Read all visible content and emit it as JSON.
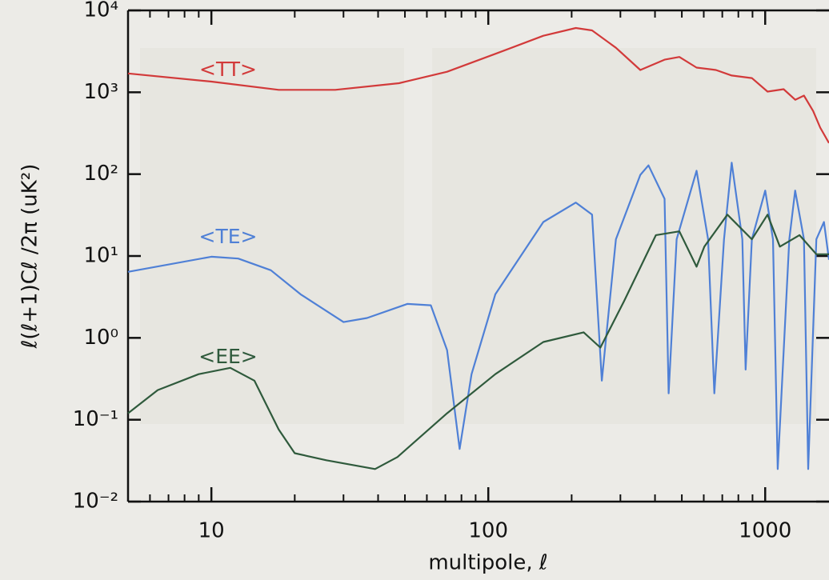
{
  "chart_data": {
    "type": "line",
    "x_label": "multipole, ℓ",
    "y_label": "ℓ(ℓ+1)Cℓ /2π  (uK²)",
    "xscale": "log",
    "yscale": "log",
    "xlim": [
      5,
      1700
    ],
    "ylim": [
      0.01,
      10000
    ],
    "xticks": [
      10,
      100,
      1000
    ],
    "x_minor_ticks": [
      6,
      7,
      8,
      9,
      20,
      30,
      40,
      50,
      60,
      70,
      80,
      90,
      200,
      300,
      400,
      500,
      600,
      700,
      800,
      900
    ],
    "yticks": [
      {
        "value": 0.01,
        "label": "10⁻²"
      },
      {
        "value": 0.1,
        "label": "10⁻¹"
      },
      {
        "value": 1,
        "label": "10⁰"
      },
      {
        "value": 10,
        "label": "10¹"
      },
      {
        "value": 100,
        "label": "10²"
      },
      {
        "value": 1000,
        "label": "10³"
      },
      {
        "value": 10000,
        "label": "10⁴"
      }
    ],
    "series": [
      {
        "name": "<TT>",
        "color": "#d23a3a",
        "x": [
          5,
          10,
          17.5,
          28,
          47.6,
          71,
          106,
          158,
          207,
          237,
          289,
          354,
          433,
          490,
          565,
          664,
          757,
          895,
          1020,
          1166,
          1284,
          1380,
          1490,
          1580,
          1700
        ],
        "values": [
          1700,
          1350,
          1070,
          1070,
          1290,
          1780,
          2950,
          4900,
          6100,
          5700,
          3500,
          1870,
          2500,
          2700,
          2000,
          1870,
          1600,
          1490,
          1020,
          1090,
          810,
          910,
          590,
          370,
          240
        ]
      },
      {
        "name": "<TE>",
        "color": "#4f80d6",
        "x": [
          5,
          10,
          12.5,
          16.4,
          21,
          30,
          36.5,
          51,
          62,
          71,
          78.8,
          87,
          106,
          158,
          207,
          237,
          257,
          289,
          354,
          379,
          433,
          448,
          479,
          565,
          622,
          655,
          710,
          757,
          827,
          850,
          895,
          1000,
          1067,
          1110,
          1222,
          1283,
          1380,
          1430,
          1530,
          1630,
          1700
        ],
        "values": [
          6.4,
          9.8,
          9.3,
          6.7,
          3.4,
          1.56,
          1.75,
          2.6,
          2.5,
          0.71,
          0.044,
          0.36,
          3.4,
          26,
          45,
          32,
          0.3,
          16,
          98,
          128,
          50,
          0.21,
          16,
          110,
          16,
          0.21,
          16,
          138,
          16,
          0.41,
          16,
          63,
          16,
          0.025,
          16,
          63,
          16,
          0.025,
          16,
          26,
          9
        ]
      },
      {
        "name": "<EE>",
        "color": "#2f5a3c",
        "x": [
          5,
          6.4,
          9,
          11.7,
          14.3,
          17.5,
          20,
          26,
          39,
          47,
          71,
          106,
          158,
          221,
          254,
          309,
          403,
          490,
          565,
          603,
          730,
          895,
          1020,
          1130,
          1330,
          1530,
          1700
        ],
        "values": [
          0.12,
          0.23,
          0.36,
          0.43,
          0.3,
          0.076,
          0.039,
          0.032,
          0.025,
          0.035,
          0.12,
          0.36,
          0.89,
          1.17,
          0.76,
          2.8,
          18,
          20,
          7.4,
          13,
          32,
          16,
          32,
          13,
          18,
          10.5,
          10.5
        ]
      }
    ]
  }
}
